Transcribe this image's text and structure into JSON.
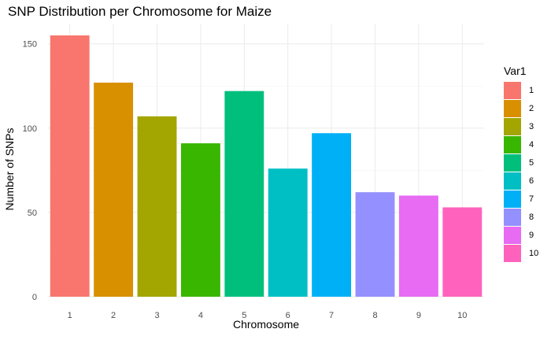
{
  "chart_data": {
    "type": "bar",
    "title": "SNP Distribution per Chromosome for Maize",
    "xlabel": "Chromosome",
    "ylabel": "Number of SNPs",
    "categories": [
      "1",
      "2",
      "3",
      "4",
      "5",
      "6",
      "7",
      "8",
      "9",
      "10"
    ],
    "values": [
      155,
      127,
      107,
      91,
      122,
      76,
      97,
      62,
      60,
      53
    ],
    "colors": [
      "#F8766D",
      "#D89000",
      "#A3A500",
      "#39B600",
      "#00BF7D",
      "#00BFC4",
      "#00B0F6",
      "#9590FF",
      "#E76BF3",
      "#FF62BC"
    ],
    "yticks": [
      0,
      50,
      100,
      150
    ],
    "ylim": [
      0,
      162
    ],
    "grid": true,
    "legend": {
      "title": "Var1",
      "placement": "right",
      "entries": [
        "1",
        "2",
        "3",
        "4",
        "5",
        "6",
        "7",
        "8",
        "9",
        "10"
      ]
    }
  }
}
